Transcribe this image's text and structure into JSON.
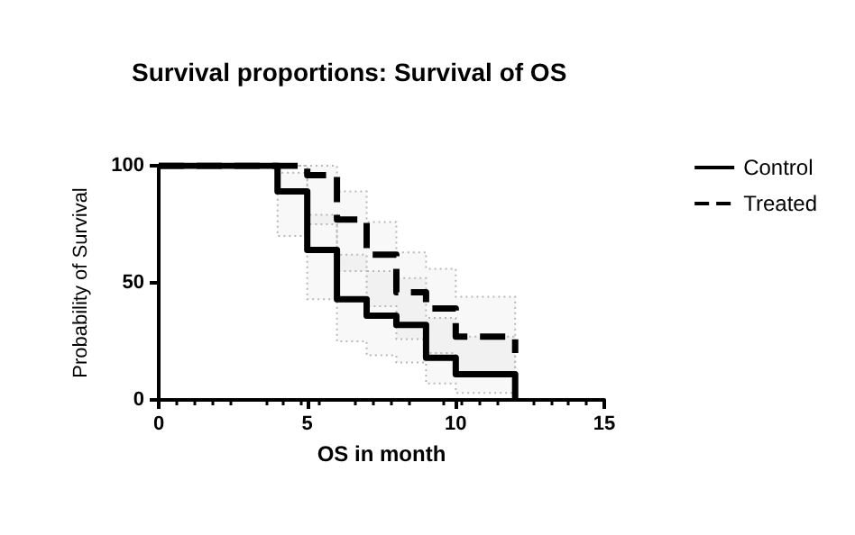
{
  "chart_data": {
    "type": "step",
    "title": "Survival proportions: Survival of OS",
    "xlabel": "OS in month",
    "ylabel": "Probability of Survival",
    "xlim": [
      0,
      15
    ],
    "xticks": [
      0,
      5,
      10,
      15
    ],
    "ylim": [
      0,
      100
    ],
    "yticks": [
      0,
      50,
      100
    ],
    "grid": false,
    "legend": "right",
    "marker": "none",
    "series": [
      {
        "name": "Control",
        "color": "#000000",
        "line_style": "solid",
        "x": [
          0,
          4,
          5,
          6,
          7,
          8,
          9,
          10,
          12
        ],
        "values": [
          100,
          89,
          64,
          43,
          36,
          32,
          18,
          11,
          0
        ],
        "lower": [
          100,
          70,
          43,
          25,
          19,
          16,
          7,
          3,
          0
        ],
        "upper": [
          100,
          97,
          79,
          62,
          55,
          52,
          35,
          27,
          0
        ]
      },
      {
        "name": "Treated",
        "color": "#000000",
        "line_style": "dashed",
        "x": [
          0,
          5,
          6,
          7,
          8,
          9,
          10,
          12
        ],
        "values": [
          100,
          96,
          77,
          62,
          46,
          39,
          27,
          20
        ],
        "lower": [
          100,
          75,
          55,
          40,
          26,
          20,
          10,
          5
        ],
        "upper": [
          100,
          100,
          89,
          76,
          63,
          56,
          44,
          35
        ]
      }
    ]
  }
}
